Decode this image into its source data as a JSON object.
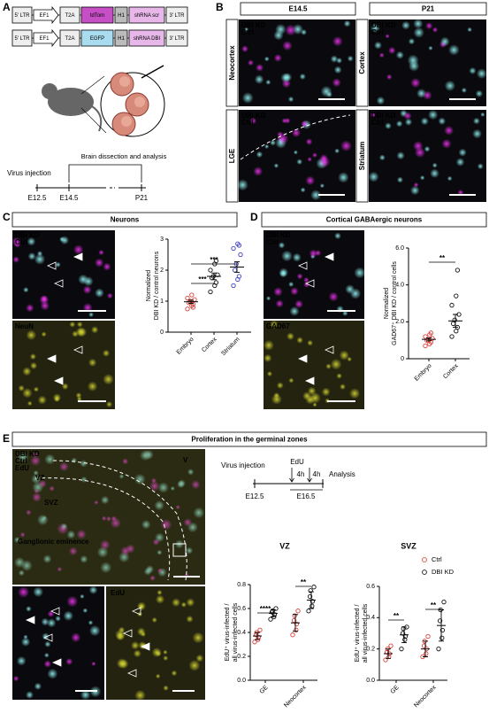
{
  "panels": {
    "A": {
      "letter": "A",
      "construct_1": [
        "5' LTR",
        "EF1",
        "T2A",
        "tdTom",
        "H1",
        "shRNA scr",
        "3' LTR"
      ],
      "construct_2": [
        "5' LTR",
        "EF1",
        "T2A",
        "EGFP",
        "H1",
        "shRNA DBI",
        "3' LTR"
      ],
      "timeline": {
        "events": [
          "Virus injection",
          "Brain dissection and analysis"
        ],
        "times": [
          "E12.5",
          "E14.5",
          "P21"
        ]
      }
    },
    "B": {
      "letter": "B",
      "columns": [
        "E14.5",
        "P21"
      ],
      "rows_left": [
        "Neocortex",
        "LGE"
      ],
      "rows_right": [
        "Cortex",
        "Striatum"
      ],
      "channels": [
        "DBI KD",
        "Ctrl"
      ]
    },
    "C": {
      "letter": "C",
      "title": "Neurons",
      "channels": [
        "DBI KD",
        "Ctrl"
      ],
      "stain": "NeuN"
    },
    "D": {
      "letter": "D",
      "title": "Cortical GABAergic neurons",
      "channels": [
        "DBI KD",
        "Ctrl"
      ],
      "stain": "GAD67"
    },
    "E": {
      "letter": "E",
      "title": "Proliferation in the germinal zones",
      "channels": [
        "DBI KD",
        "Ctrl",
        "EdU"
      ],
      "regions": [
        "VZ",
        "SVZ",
        "V",
        "Ganglionic eminence"
      ],
      "inset_stain": "EdU",
      "timeline": {
        "events": [
          "Virus injection",
          "EdU",
          "Analysis"
        ],
        "intervals": [
          "4h",
          "4h"
        ],
        "times": [
          "E12.5",
          "E16.5"
        ]
      }
    }
  },
  "chart_data": [
    {
      "type": "dot",
      "y_label": [
        "Normalized",
        "DBI KD / control neurons"
      ],
      "categories": [
        "Embryo",
        "Cortex",
        "Striatum"
      ],
      "ylim": [
        0,
        3
      ],
      "yticks": [
        0,
        1,
        2,
        3
      ],
      "groups": [
        {
          "color": "#d9413c",
          "values": [
            0.75,
            0.85,
            0.9,
            0.95,
            1.0,
            1.05,
            1.1,
            1.2,
            0.8
          ],
          "mean": 0.98,
          "error": 0.05
        },
        {
          "color": "#111111",
          "values": [
            1.3,
            1.5,
            1.6,
            1.75,
            1.8,
            1.85,
            2.0,
            2.2,
            2.3
          ],
          "mean": 1.8,
          "error": 0.11
        },
        {
          "color": "#3a3fc4",
          "values": [
            1.5,
            1.7,
            1.8,
            2.0,
            2.2,
            2.5,
            2.7,
            2.85,
            2.8
          ],
          "mean": 2.1,
          "error": 0.17
        }
      ],
      "significance": [
        "***",
        "***"
      ]
    },
    {
      "type": "dot",
      "y_label": [
        "Normalized",
        "GAD67⁺ DBI KD / control cells"
      ],
      "categories": [
        "Embryo",
        "Cortex"
      ],
      "ylim": [
        0,
        6
      ],
      "yticks": [
        0,
        {
          "value": 2,
          "label": "2.0"
        },
        {
          "value": 4,
          "label": "4.0"
        },
        {
          "value": 6,
          "label": "6.0"
        }
      ],
      "groups": [
        {
          "color": "#d9413c",
          "values": [
            0.7,
            0.8,
            0.9,
            1.0,
            1.0,
            1.1,
            1.2,
            1.3,
            1.4
          ],
          "mean": 1.05,
          "error": 0.08
        },
        {
          "color": "#111111",
          "values": [
            1.2,
            1.5,
            1.7,
            1.9,
            2.1,
            2.4,
            2.9,
            3.4,
            4.8
          ],
          "mean": 2.05,
          "error": 0.35
        }
      ],
      "significance": [
        "**"
      ]
    },
    {
      "type": "dot",
      "title": "VZ",
      "y_label": [
        "EdU⁺ virus-infected /",
        "all virus-infected cells"
      ],
      "categories": [
        "GE",
        "Neocortex"
      ],
      "ylim": [
        0,
        0.8
      ],
      "yticks": [
        {
          "value": 0,
          "label": "0.0"
        },
        0.2,
        0.4,
        0.6,
        0.8
      ],
      "series": [
        {
          "color": "#d9413c",
          "groups": [
            {
              "values": [
                0.32,
                0.34,
                0.36,
                0.38,
                0.4,
                0.42
              ],
              "mean": 0.37,
              "error": 0.03
            },
            {
              "values": [
                0.38,
                0.42,
                0.47,
                0.5,
                0.54,
                0.58
              ],
              "mean": 0.48,
              "error": 0.07
            }
          ]
        },
        {
          "color": "#111111",
          "groups": [
            {
              "values": [
                0.51,
                0.53,
                0.55,
                0.57,
                0.58,
                0.6
              ],
              "mean": 0.56,
              "error": 0.03
            },
            {
              "values": [
                0.58,
                0.62,
                0.66,
                0.7,
                0.75,
                0.78
              ],
              "mean": 0.67,
              "error": 0.07
            }
          ]
        }
      ],
      "significance": [
        "****",
        "**"
      ]
    },
    {
      "type": "dot",
      "title": "SVZ",
      "y_label": [
        "EdU⁺ virus-infected /",
        "all virus-infected cells"
      ],
      "categories": [
        "GE",
        "Neocortex"
      ],
      "ylim": [
        0,
        0.6
      ],
      "yticks": [
        {
          "value": 0,
          "label": "0.0"
        },
        0.2,
        0.4,
        0.6
      ],
      "legend": "top-right",
      "series": [
        {
          "name": "Ctrl",
          "color": "#d9413c",
          "groups": [
            {
              "values": [
                0.13,
                0.15,
                0.17,
                0.18,
                0.2,
                0.22
              ],
              "mean": 0.17,
              "error": 0.03
            },
            {
              "values": [
                0.15,
                0.17,
                0.2,
                0.22,
                0.25,
                0.28
              ],
              "mean": 0.2,
              "error": 0.05
            }
          ]
        },
        {
          "name": "DBI KD",
          "color": "#111111",
          "groups": [
            {
              "values": [
                0.2,
                0.26,
                0.28,
                0.3,
                0.33,
                0.34
              ],
              "mean": 0.29,
              "error": 0.05
            },
            {
              "values": [
                0.2,
                0.27,
                0.32,
                0.38,
                0.45,
                0.5
              ],
              "mean": 0.35,
              "error": 0.1
            }
          ]
        }
      ],
      "significance": [
        "**",
        "**"
      ]
    }
  ]
}
